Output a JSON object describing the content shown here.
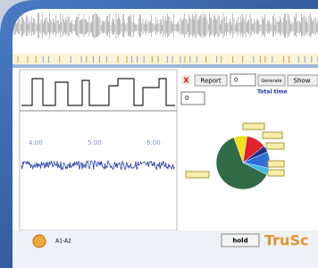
{
  "toolbar": {
    "report": "Report",
    "report_count": "0",
    "generate": "Generate",
    "show": "Show",
    "total_time": "Total time",
    "epoch": "0"
  },
  "timeline": {
    "labels": [
      "4:00",
      "5:00",
      "6:00"
    ]
  },
  "chart_data": {
    "type": "pie",
    "values": [
      8,
      12,
      4,
      10,
      4,
      62
    ],
    "colors": [
      "#f2e21a",
      "#e0222a",
      "#1d2f8c",
      "#2f6fd6",
      "#39b9e6",
      "#2f6b47"
    ]
  },
  "footer": {
    "channel": "A1-A2",
    "hold": "hold",
    "logo": "TruSc"
  }
}
